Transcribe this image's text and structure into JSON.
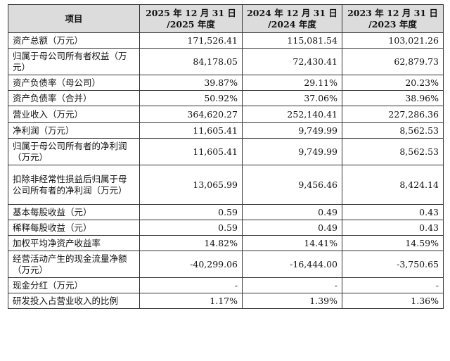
{
  "headers": [
    "项目",
    "2025 年 12 月 31 日\n/2025 年度",
    "2024 年 12 月 31 日\n/2024 年度",
    "2023 年 12 月 31 日\n/2023 年度"
  ],
  "rows": [
    {
      "label": "资产总额（万元）",
      "values": [
        "171,526.41",
        "115,081.54",
        "103,021.26"
      ]
    },
    {
      "label": "归属于母公司所有者权益（万元）",
      "values": [
        "84,178.05",
        "72,430.41",
        "62,879.73"
      ]
    },
    {
      "label": "资产负债率（母公司）",
      "values": [
        "39.87%",
        "29.11%",
        "20.23%"
      ]
    },
    {
      "label": "资产负债率（合并）",
      "values": [
        "50.92%",
        "37.06%",
        "38.96%"
      ]
    },
    {
      "label": "营业收入（万元）",
      "values": [
        "364,620.27",
        "252,140.41",
        "227,286.36"
      ]
    },
    {
      "label": "净利润（万元）",
      "values": [
        "11,605.41",
        "9,749.99",
        "8,562.53"
      ]
    },
    {
      "label": "归属于母公司所有者的净利润（万元）",
      "values": [
        "11,605.41",
        "9,749.99",
        "8,562.53"
      ]
    },
    {
      "label": "扣除非经常性损益后归属于母公司所有者的净利润（万元）",
      "values": [
        "13,065.99",
        "9,456.46",
        "8,424.14"
      ]
    },
    {
      "label": "基本每股收益（元）",
      "values": [
        "0.59",
        "0.49",
        "0.43"
      ]
    },
    {
      "label": "稀释每股收益（元）",
      "values": [
        "0.59",
        "0.49",
        "0.43"
      ]
    },
    {
      "label": "加权平均净资产收益率",
      "values": [
        "14.82%",
        "14.41%",
        "14.59%"
      ]
    },
    {
      "label": "经营活动产生的现金流量净额（万元）",
      "values": [
        "-40,299.06",
        "-16,444.00",
        "-3,750.65"
      ]
    },
    {
      "label": "现金分红（万元）",
      "values": [
        "-",
        "-",
        "-"
      ]
    },
    {
      "label": "研发投入占营业收入的比例",
      "values": [
        "1.17%",
        "1.39%",
        "1.36%"
      ]
    }
  ]
}
